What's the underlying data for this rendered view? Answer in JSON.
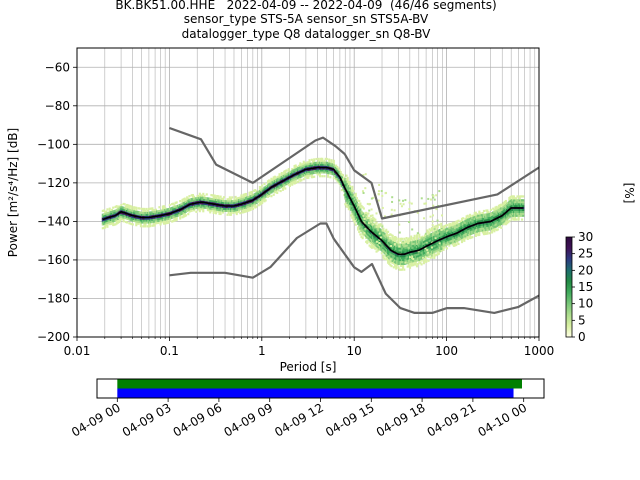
{
  "title_lines": [
    "BK.BK51.00.HHE   2022-04-09 -- 2022-04-09  (46/46 segments)",
    "sensor_type STS-5A sensor_sn STS5A-BV",
    "datalogger_type Q8 datalogger_sn Q8-BV"
  ],
  "chart_data": [
    {
      "type": "heatmap",
      "title": "BK.BK51.00.HHE   2022-04-09 -- 2022-04-09  (46/46 segments)",
      "xlabel": "Period [s]",
      "ylabel": "Power [m²/s⁴/Hz] [dB]",
      "x_scale": "log",
      "xlim": [
        0.01,
        1000
      ],
      "ylim": [
        -200,
        -50
      ],
      "grid": true,
      "x_ticks": [
        0.01,
        0.1,
        1,
        10,
        100,
        1000
      ],
      "x_tick_labels": [
        "0.01",
        "0.1",
        "1",
        "10",
        "100",
        "1000"
      ],
      "y_ticks": [
        -200,
        -180,
        -160,
        -140,
        -120,
        -100,
        -80,
        -60
      ],
      "y_tick_labels": [
        "−200",
        "−180",
        "−160",
        "−140",
        "−120",
        "−100",
        "−80",
        "−60"
      ],
      "series": [
        {
          "kind": "mode",
          "color": "#000000",
          "x": [
            0.019,
            0.022,
            0.026,
            0.03,
            0.035,
            0.04,
            0.05,
            0.06,
            0.08,
            0.1,
            0.13,
            0.17,
            0.22,
            0.3,
            0.4,
            0.5,
            0.6,
            0.7,
            0.8,
            1.0,
            1.3,
            1.7,
            2.2,
            3.0,
            4.0,
            5.0,
            6.0,
            7.0,
            8.0,
            10.0,
            12.0,
            15.0,
            20.0,
            25.0,
            30.0,
            35.0,
            40.0,
            50.0,
            60.0,
            80.0,
            100.0,
            130.0,
            170.0,
            220.0,
            300.0,
            400.0,
            500.0,
            680.0
          ],
          "y": [
            -139,
            -138,
            -137,
            -135,
            -136,
            -137,
            -138,
            -138,
            -137,
            -136,
            -134,
            -131,
            -130,
            -131,
            -132,
            -132,
            -131,
            -130,
            -129,
            -126,
            -122,
            -119,
            -116,
            -113,
            -112,
            -112,
            -113,
            -117,
            -123,
            -132,
            -140,
            -145,
            -150,
            -155,
            -157,
            -157,
            -156,
            -155,
            -153,
            -150,
            -148,
            -146,
            -143,
            -141,
            -140,
            -137,
            -133,
            -133
          ]
        },
        {
          "kind": "NHNM",
          "color": "#666666",
          "x": [
            0.1,
            0.22,
            0.32,
            0.8,
            3.8,
            4.6,
            6.3,
            7.9,
            10.0,
            15.4,
            20.0,
            354.8,
            1000.0
          ],
          "y": [
            -91.5,
            -97.4,
            -110.5,
            -120.0,
            -98.0,
            -96.5,
            -101.0,
            -105.0,
            -113.5,
            -120.0,
            -138.5,
            -126.0,
            -112.0
          ]
        },
        {
          "kind": "NLNM",
          "color": "#666666",
          "x": [
            0.1,
            0.17,
            0.4,
            0.8,
            1.24,
            2.4,
            4.3,
            5.0,
            6.0,
            10.0,
            12.0,
            15.6,
            21.9,
            31.6,
            45.0,
            70.0,
            101.0,
            154.0,
            328.0,
            600.0,
            1000.0
          ],
          "y": [
            -168.0,
            -166.7,
            -166.7,
            -169.2,
            -163.7,
            -148.6,
            -141.1,
            -141.1,
            -149.0,
            -163.8,
            -166.2,
            -162.1,
            -177.5,
            -185.0,
            -187.5,
            -187.5,
            -185.0,
            -185.0,
            -187.5,
            -184.4,
            -178.5
          ]
        }
      ],
      "colorbar": {
        "label": "[%]",
        "min": 0,
        "max": 30,
        "ticks": [
          0,
          5,
          10,
          15,
          20,
          25,
          30
        ],
        "colors": [
          "#ffffe5",
          "#d9f0a3",
          "#addd8e",
          "#78c679",
          "#41ab5d",
          "#238b45",
          "#1d6e6e",
          "#2c3a80",
          "#3f1357",
          "#2d0a3f"
        ]
      },
      "time_panel": {
        "tick_labels": [
          "04-09 00",
          "04-09 03",
          "04-09 06",
          "04-09 09",
          "04-09 12",
          "04-09 15",
          "04-09 18",
          "04-09 21",
          "04-10 00"
        ],
        "tick_hours": [
          0,
          3,
          6,
          9,
          12,
          15,
          18,
          21,
          24
        ],
        "range_hours": [
          -1.2,
          25.2
        ],
        "bars": [
          {
            "color": "#008000",
            "start_hour": 0,
            "end_hour": 23.9
          },
          {
            "color": "#0000ff",
            "start_hour": 0,
            "end_hour": 23.4
          }
        ]
      }
    }
  ]
}
